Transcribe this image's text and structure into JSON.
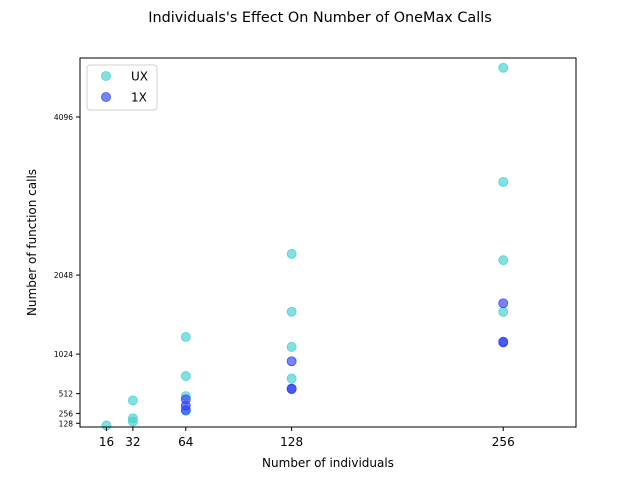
{
  "chart_data": {
    "type": "scatter",
    "title": "Individuals's Effect On Number of OneMax Calls",
    "xlabel": "Number of individuals",
    "ylabel": "Number of function calls",
    "xlim": [
      0,
      300
    ],
    "ylim": [
      80,
      4860
    ],
    "xticks": [
      16,
      32,
      64,
      128,
      256
    ],
    "yticks": [
      128,
      256,
      512,
      1024,
      2048,
      4096
    ],
    "grid": false,
    "legend_position": "top-left",
    "series": [
      {
        "name": "UX",
        "color": "#40d0d0",
        "points": [
          [
            16,
            100
          ],
          [
            32,
            150
          ],
          [
            32,
            192
          ],
          [
            32,
            424
          ],
          [
            64,
            290
          ],
          [
            64,
            480
          ],
          [
            64,
            740
          ],
          [
            64,
            1247
          ],
          [
            128,
            708
          ],
          [
            128,
            1117
          ],
          [
            128,
            1573
          ],
          [
            128,
            2322
          ],
          [
            256,
            1571
          ],
          [
            256,
            2241
          ],
          [
            256,
            3255
          ],
          [
            256,
            4734
          ]
        ]
      },
      {
        "name": "1X",
        "color": "#3040ff",
        "points": [
          [
            64,
            300
          ],
          [
            64,
            355
          ],
          [
            64,
            438
          ],
          [
            128,
            570
          ],
          [
            128,
            579
          ],
          [
            128,
            932
          ],
          [
            256,
            1175
          ],
          [
            256,
            1185
          ],
          [
            256,
            1683
          ]
        ]
      }
    ]
  }
}
